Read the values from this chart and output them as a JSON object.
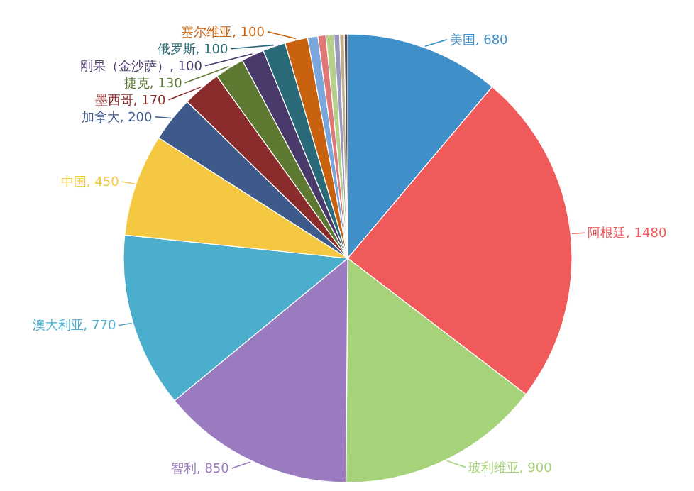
{
  "chart_data": {
    "type": "pie",
    "categories": [
      "美国",
      "阿根廷",
      "玻利维亚",
      "智利",
      "澳大利亚",
      "中国",
      "加拿大",
      "墨西哥",
      "捷克",
      "刚果（金沙萨）",
      "俄罗斯",
      "塞尔维亚",
      null,
      null,
      null,
      null,
      null,
      null
    ],
    "values": [
      680,
      1480,
      900,
      850,
      770,
      450,
      200,
      170,
      130,
      100,
      100,
      100,
      45,
      35,
      35,
      25,
      20,
      15
    ],
    "value_labels": [
      "680",
      "1480",
      "900",
      "850",
      "770",
      "450",
      "200",
      "170",
      "130",
      "100",
      "100",
      "100",
      null,
      null,
      null,
      null,
      null,
      null
    ],
    "colors": [
      "#3f8fc9",
      "#f05a5a",
      "#a6d27a",
      "#9b7bbf",
      "#4aaecc",
      "#f5c842",
      "#3d5a8a",
      "#8b2c2c",
      "#5e7a32",
      "#4a3a6b",
      "#2a6a78",
      "#c8620e",
      "#7ba6dc",
      "#e07878",
      "#b5d08a",
      "#9a9ac0",
      "#c4b088",
      "#4a4a5a"
    ]
  }
}
